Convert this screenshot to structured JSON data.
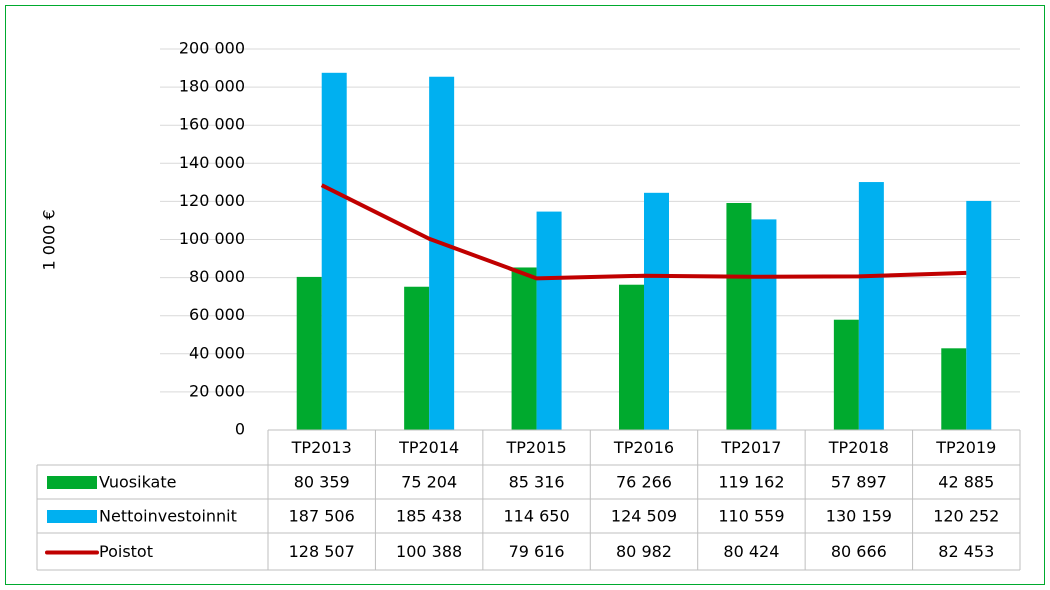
{
  "chart_data": {
    "type": "bar",
    "y_label": "1 000 €",
    "categories": [
      "TP2013",
      "TP2014",
      "TP2015",
      "TP2016",
      "TP2017",
      "TP2018",
      "TP2019"
    ],
    "series": [
      {
        "name": "Vuosikate",
        "type": "bar",
        "color": "#00aa2e",
        "values": [
          80359,
          75204,
          85316,
          76266,
          119162,
          57897,
          42885
        ],
        "value_labels": [
          "80 359",
          "75 204",
          "85 316",
          "76 266",
          "119 162",
          "57 897",
          "42 885"
        ]
      },
      {
        "name": "Nettoinvestoinnit",
        "type": "bar",
        "color": "#00b0f0",
        "values": [
          187506,
          185438,
          114650,
          124509,
          110559,
          130159,
          120252
        ],
        "value_labels": [
          "187 506",
          "185 438",
          "114 650",
          "124 509",
          "110 559",
          "130 159",
          "120 252"
        ]
      },
      {
        "name": "Poistot",
        "type": "line",
        "color": "#c00000",
        "values": [
          128507,
          100388,
          79616,
          80982,
          80424,
          80666,
          82453
        ],
        "value_labels": [
          "128 507",
          "100 388",
          "79 616",
          "80 982",
          "80 424",
          "80 666",
          "82 453"
        ]
      }
    ],
    "ylim": [
      0,
      200000
    ],
    "yticks": [
      0,
      {
        "value": 20000,
        "label": "20 000"
      },
      {
        "value": 40000,
        "label": "40 000"
      },
      {
        "value": 60000,
        "label": "60 000"
      },
      {
        "value": 80000,
        "label": "80 000"
      },
      {
        "value": 100000,
        "label": "100 000"
      },
      {
        "value": 120000,
        "label": "120 000"
      },
      {
        "value": 140000,
        "label": "140 000"
      },
      {
        "value": 160000,
        "label": "160 000"
      },
      {
        "value": 180000,
        "label": "180 000"
      },
      {
        "value": 200000,
        "label": "200 000"
      }
    ],
    "grid": true
  }
}
